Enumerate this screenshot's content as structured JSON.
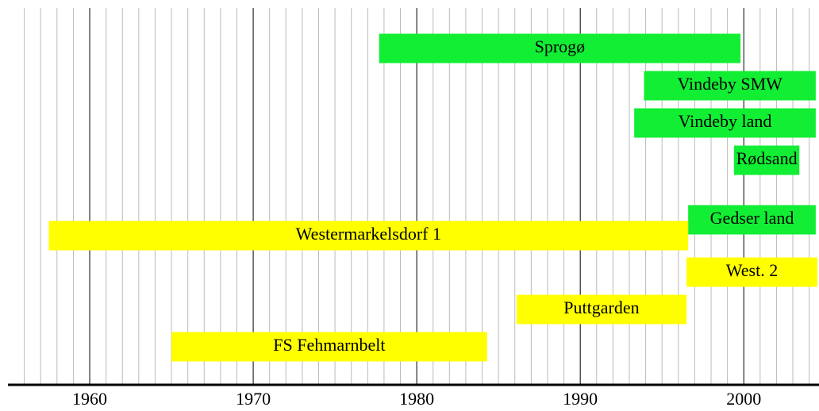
{
  "chart_data": {
    "type": "timeline",
    "bars": [
      {
        "name": "Sprogø",
        "start": 1977.7,
        "end": 1999.8,
        "color": "#11ee33"
      },
      {
        "name": "Vindeby SMW",
        "start": 1993.9,
        "end": 2004.4,
        "color": "#11ee33"
      },
      {
        "name": "Vindeby land",
        "start": 1993.3,
        "end": 2004.4,
        "color": "#11ee33"
      },
      {
        "name": "Rødsand",
        "start": 1999.4,
        "end": 2003.4,
        "color": "#11ee33"
      },
      {
        "name": "Gedser land",
        "start": 1996.6,
        "end": 2004.4,
        "color": "#11ee33"
      },
      {
        "name": "Westermarkelsdorf 1",
        "start": 1957.5,
        "end": 1996.6,
        "color": "#ffff00"
      },
      {
        "name": "West. 2",
        "start": 1996.5,
        "end": 2004.5,
        "color": "#ffff00"
      },
      {
        "name": "Puttgarden",
        "start": 1986.1,
        "end": 1996.5,
        "color": "#ffff00"
      },
      {
        "name": "FS Fehmarnbelt",
        "start": 1965.0,
        "end": 1984.3,
        "color": "#ffff00"
      }
    ],
    "xlim": [
      1955,
      2004.6
    ],
    "xticks": [
      1960,
      1970,
      1980,
      1990,
      2000
    ],
    "minor_xticks": [
      1956,
      1957,
      1958,
      1959,
      1961,
      1962,
      1963,
      1964,
      1965,
      1966,
      1967,
      1968,
      1969,
      1971,
      1972,
      1973,
      1974,
      1975,
      1976,
      1977,
      1978,
      1979,
      1981,
      1982,
      1983,
      1984,
      1985,
      1986,
      1987,
      1988,
      1989,
      1991,
      1992,
      1993,
      1994,
      1995,
      1996,
      1997,
      1998,
      1999,
      2001,
      2002,
      2003,
      2004
    ],
    "grid": true
  }
}
